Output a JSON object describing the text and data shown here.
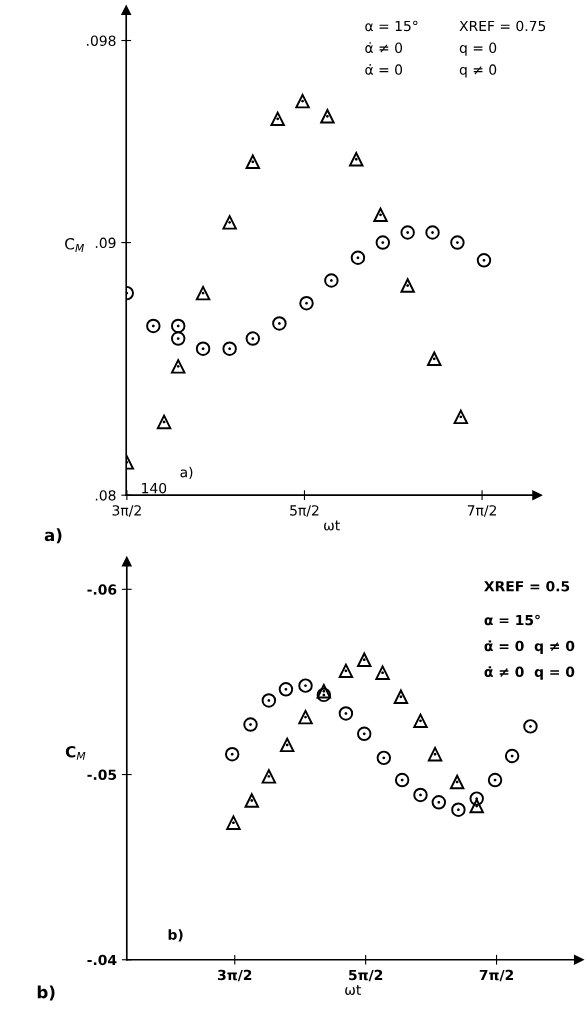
{
  "chart_data": [
    {
      "type": "scatter",
      "title": "a)",
      "xlabel": "ωt",
      "ylabel": "C$_{M}$",
      "xlim": [
        4.7,
        11.97
      ],
      "ylim": [
        0.08,
        0.0992
      ],
      "xticks": [
        {
          "value": 4.712,
          "label": "3π/2"
        },
        {
          "value": 7.854,
          "label": "5π/2"
        },
        {
          "value": 10.996,
          "label": "7π/2"
        }
      ],
      "yticks": [
        {
          "value": 0.08,
          "label": ".08"
        },
        {
          "value": 0.09,
          "label": ".09"
        },
        {
          "value": 0.098,
          "label": ".098"
        }
      ],
      "grid": false,
      "annotations": [
        "α = 15°",
        "XREF = 0.75",
        "α̇ ≠ 0",
        "q = 0",
        "α̇ = 0",
        "q ≠ 0",
        "a)",
        "140"
      ],
      "series": [
        {
          "color": "#000000",
          "marker": "circle",
          "x": [
            4.71,
            5.18,
            5.62,
            5.62,
            6.06,
            6.53,
            6.94,
            7.41,
            7.89,
            8.33,
            8.8,
            9.24,
            9.68,
            10.12,
            10.56,
            11.03
          ],
          "values": [
            0.088,
            0.0867,
            0.0867,
            0.0862,
            0.0858,
            0.0858,
            0.0862,
            0.0868,
            0.0876,
            0.0885,
            0.0894,
            0.09,
            0.0904,
            0.0904,
            0.09,
            0.0893
          ]
        },
        {
          "color": "#000000",
          "marker": "triangle",
          "x": [
            4.71,
            5.37,
            5.62,
            6.06,
            6.53,
            6.94,
            7.38,
            7.82,
            8.26,
            8.77,
            9.2,
            9.68,
            10.15,
            10.62
          ],
          "values": [
            0.0813,
            0.0829,
            0.0851,
            0.088,
            0.0908,
            0.0932,
            0.0949,
            0.0956,
            0.095,
            0.0933,
            0.0911,
            0.0883,
            0.0854,
            0.0831
          ]
        }
      ]
    },
    {
      "type": "scatter",
      "title": "b)",
      "xlabel": "ωt",
      "ylabel": "C$_{M}$",
      "xlim": [
        2.12,
        12.97
      ],
      "ylim": [
        -0.04,
        -0.0615
      ],
      "xticks": [
        {
          "value": 4.712,
          "label": "3π/2"
        },
        {
          "value": 7.854,
          "label": "5π/2"
        },
        {
          "value": 10.996,
          "label": "7π/2"
        }
      ],
      "yticks": [
        {
          "value": -0.04,
          "label": "-.04"
        },
        {
          "value": -0.05,
          "label": "-.05"
        },
        {
          "value": -0.06,
          "label": "-.06"
        }
      ],
      "grid": false,
      "annotations": [
        "XREF = 0.5",
        "α = 15°",
        "α̇ = 0  q ≠ 0",
        "α̇ ≠ 0  q = 0",
        "b)"
      ],
      "series": [
        {
          "color": "#000000",
          "marker": "circle",
          "x": [
            4.65,
            5.09,
            5.53,
            5.94,
            6.41,
            6.85,
            7.38,
            7.82,
            8.29,
            8.73,
            9.17,
            9.61,
            10.08,
            10.52,
            10.96,
            11.37,
            11.81
          ],
          "values": [
            -0.0511,
            -0.0527,
            -0.054,
            -0.0546,
            -0.0548,
            -0.0543,
            -0.0533,
            -0.0522,
            -0.0509,
            -0.0497,
            -0.0489,
            -0.0485,
            -0.0481,
            -0.0487,
            -0.0497,
            -0.051,
            -0.0526
          ]
        },
        {
          "color": "#000000",
          "marker": "triangle",
          "x": [
            4.68,
            5.12,
            5.53,
            5.97,
            6.41,
            6.85,
            7.38,
            7.82,
            8.26,
            8.7,
            9.17,
            9.52,
            10.05,
            10.52
          ],
          "values": [
            -0.0474,
            -0.0486,
            -0.0499,
            -0.0516,
            -0.0531,
            -0.0545,
            -0.0556,
            -0.0562,
            -0.0555,
            -0.0542,
            -0.0529,
            -0.0511,
            -0.0496,
            -0.0483
          ]
        }
      ]
    }
  ]
}
